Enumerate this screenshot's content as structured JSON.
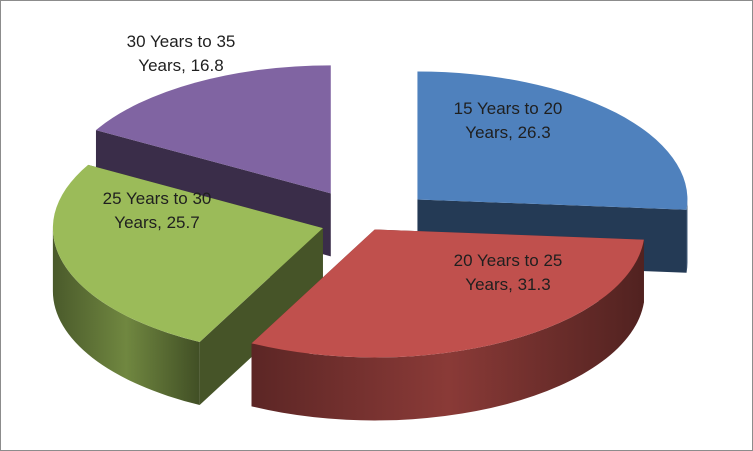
{
  "chart_data": {
    "type": "pie",
    "variant": "3d-exploded",
    "title": "",
    "categories": [
      "15 Years to 20 Years",
      "20 Years to 25 Years",
      "25 Years to 30 Years",
      "30 Years to 35 Years"
    ],
    "values": [
      26.3,
      31.3,
      25.7,
      16.8
    ],
    "colors": [
      "#4f81bd",
      "#c0504d",
      "#9bbb59",
      "#8064a2"
    ],
    "labels": [
      [
        "15 Years to 20",
        "Years, 26.3"
      ],
      [
        "20 Years to 25",
        "Years, 31.3"
      ],
      [
        "25 Years to 30",
        "Years, 25.7"
      ],
      [
        "30 Years to 35",
        "Years, 16.8"
      ]
    ],
    "legend": "none"
  }
}
